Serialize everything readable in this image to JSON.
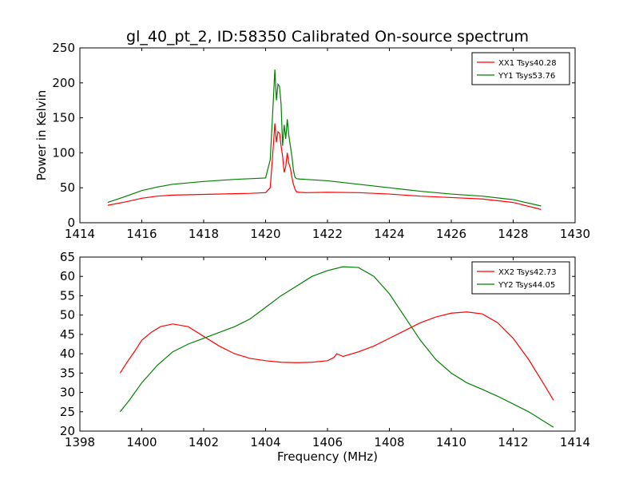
{
  "chart_data": [
    {
      "type": "line",
      "title": "gl_40_pt_2, ID:58350 Calibrated On-source spectrum",
      "xlabel": "",
      "ylabel": "Power in Kelvin",
      "xlim": [
        1414,
        1430
      ],
      "ylim": [
        0,
        250
      ],
      "xticks": [
        1414,
        1416,
        1418,
        1420,
        1422,
        1424,
        1426,
        1428,
        1430
      ],
      "yticks": [
        0,
        50,
        100,
        150,
        200,
        250
      ],
      "legend_position": "top-right",
      "series": [
        {
          "name": "XX1 Tsys40.28",
          "color": "#ff0000",
          "x": [
            1414.9,
            1415.5,
            1416,
            1416.5,
            1417,
            1418,
            1419,
            1419.5,
            1420,
            1420.15,
            1420.25,
            1420.3,
            1420.35,
            1420.4,
            1420.45,
            1420.5,
            1420.55,
            1420.6,
            1420.65,
            1420.7,
            1420.75,
            1420.8,
            1420.85,
            1420.9,
            1420.95,
            1421.0,
            1421.1,
            1421.3,
            1422,
            1423,
            1424,
            1425,
            1426,
            1427,
            1428,
            1428.9
          ],
          "y": [
            25,
            30,
            35,
            38,
            39.5,
            40.5,
            41.5,
            42,
            43,
            50,
            110,
            142,
            115,
            130,
            128,
            110,
            95,
            72,
            80,
            100,
            85,
            78,
            65,
            55,
            48,
            44,
            43.5,
            43,
            43.5,
            43,
            41,
            38,
            36,
            34,
            29,
            19
          ]
        },
        {
          "name": "YY1 Tsys53.76",
          "color": "#008000",
          "x": [
            1414.9,
            1415.5,
            1416,
            1416.5,
            1417,
            1418,
            1419,
            1419.5,
            1420,
            1420.15,
            1420.25,
            1420.3,
            1420.35,
            1420.4,
            1420.45,
            1420.5,
            1420.55,
            1420.6,
            1420.65,
            1420.7,
            1420.75,
            1420.8,
            1420.85,
            1420.9,
            1420.95,
            1421.0,
            1421.1,
            1421.3,
            1422,
            1423,
            1424,
            1425,
            1426,
            1427,
            1428,
            1428.9
          ],
          "y": [
            29,
            38,
            46,
            51,
            55,
            59,
            62,
            63,
            64,
            90,
            175,
            219,
            175,
            198,
            195,
            170,
            110,
            140,
            120,
            148,
            125,
            110,
            95,
            75,
            65,
            63,
            62.5,
            62,
            60,
            55,
            50,
            45,
            41,
            38,
            33,
            24
          ]
        }
      ]
    },
    {
      "type": "line",
      "title": "",
      "xlabel": "Frequency (MHz)",
      "ylabel": "",
      "xlim": [
        1398,
        1414
      ],
      "ylim": [
        20,
        65
      ],
      "xticks": [
        1398,
        1400,
        1402,
        1404,
        1406,
        1408,
        1410,
        1412,
        1414
      ],
      "yticks": [
        20,
        25,
        30,
        35,
        40,
        45,
        50,
        55,
        60,
        65
      ],
      "legend_position": "top-right",
      "series": [
        {
          "name": "XX2 Tsys42.73",
          "color": "#ff0000",
          "x": [
            1399.3,
            1399.5,
            1399.8,
            1400,
            1400.3,
            1400.6,
            1401,
            1401.5,
            1402,
            1402.5,
            1403,
            1403.5,
            1404,
            1404.5,
            1405,
            1405.5,
            1406,
            1406.2,
            1406.3,
            1406.5,
            1407,
            1407.5,
            1408,
            1408.5,
            1409,
            1409.5,
            1410,
            1410.5,
            1411,
            1411.5,
            1412,
            1412.5,
            1413,
            1413.3
          ],
          "y": [
            35,
            37.5,
            41,
            43.5,
            45.5,
            47,
            47.7,
            47,
            44.5,
            42,
            40,
            38.8,
            38.2,
            37.8,
            37.7,
            37.8,
            38.2,
            39,
            40,
            39.3,
            40.5,
            42,
            44,
            46,
            48,
            49.5,
            50.5,
            50.8,
            50.3,
            48,
            44,
            38.5,
            32,
            28
          ]
        },
        {
          "name": "YY2 Tsys44.05",
          "color": "#008000",
          "x": [
            1399.3,
            1399.6,
            1400,
            1400.5,
            1401,
            1401.5,
            1402,
            1402.5,
            1403,
            1403.5,
            1404,
            1404.5,
            1405,
            1405.5,
            1406,
            1406.5,
            1407,
            1407.5,
            1408,
            1408.5,
            1409,
            1409.5,
            1410,
            1410.5,
            1411,
            1411.5,
            1412,
            1412.5,
            1413,
            1413.3
          ],
          "y": [
            25,
            28,
            32.5,
            37,
            40.5,
            42.5,
            44,
            45.5,
            47,
            49,
            52,
            55,
            57.5,
            60,
            61.5,
            62.5,
            62.3,
            60,
            55.5,
            49.5,
            43.5,
            38.5,
            35,
            32.5,
            30.8,
            29,
            27,
            25,
            22.5,
            21
          ]
        }
      ]
    }
  ]
}
